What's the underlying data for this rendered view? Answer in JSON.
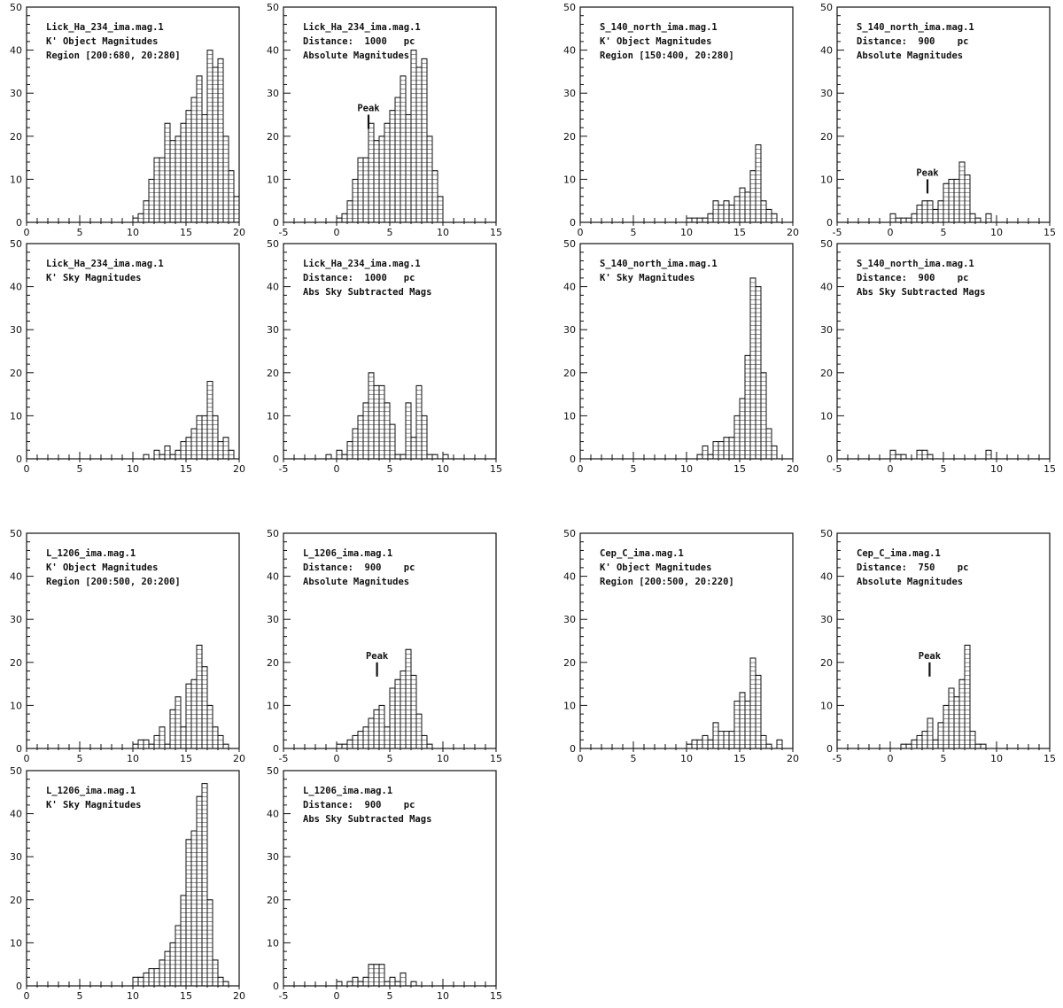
{
  "chart_data": [
    {
      "type": "histogram",
      "texts": [
        "Lick_Ha_234_ima.mag.1",
        "K' Object Magnitudes",
        "Region [200:680, 20:280]"
      ],
      "bins": [
        10,
        10.5,
        11,
        11.5,
        12,
        12.5,
        13,
        13.5,
        14,
        14.5,
        15,
        15.5,
        16,
        16.5,
        17,
        17.5,
        18,
        18.5,
        19,
        19.5,
        20
      ],
      "values": [
        1,
        2,
        5,
        10,
        15,
        15,
        23,
        19,
        20,
        23,
        26,
        29,
        34,
        25,
        40,
        36,
        38,
        20,
        12,
        6
      ],
      "xlim": [
        0,
        20
      ],
      "xticks": [
        0,
        5,
        10,
        15,
        20
      ],
      "ylim": [
        0,
        50
      ],
      "yticks": [
        0,
        10,
        20,
        30,
        40,
        50
      ]
    },
    {
      "type": "histogram",
      "texts": [
        "Lick_Ha_234_ima.mag.1",
        "Distance:  1000   pc",
        "Absolute Magnitudes"
      ],
      "bins": [
        0,
        0.5,
        1,
        1.5,
        2,
        2.5,
        3,
        3.5,
        4,
        4.5,
        5,
        5.5,
        6,
        6.5,
        7,
        7.5,
        8,
        8.5,
        9,
        9.5,
        10
      ],
      "values": [
        1,
        2,
        5,
        10,
        15,
        15,
        23,
        19,
        20,
        23,
        26,
        29,
        34,
        25,
        40,
        36,
        38,
        20,
        12,
        6
      ],
      "annotation": {
        "text": "Peak",
        "x": 3,
        "y": 25
      },
      "xlim": [
        -5,
        15
      ],
      "xticks": [
        -5,
        0,
        5,
        10,
        15
      ],
      "ylim": [
        0,
        50
      ],
      "yticks": [
        0,
        10,
        20,
        30,
        40,
        50
      ]
    },
    {
      "type": "histogram",
      "texts": [
        "S_140_north_ima.mag.1",
        "K' Object Magnitudes",
        "Region [150:400, 20:280]"
      ],
      "bins": [
        10,
        10.5,
        11,
        11.5,
        12,
        12.5,
        13,
        13.5,
        14,
        14.5,
        15,
        15.5,
        16,
        16.5,
        17,
        17.5,
        18,
        18.5
      ],
      "values": [
        1,
        1,
        1,
        1,
        2,
        5,
        4,
        5,
        4,
        6,
        8,
        7,
        12,
        18,
        5,
        3,
        2
      ],
      "xlim": [
        0,
        20
      ],
      "xticks": [
        0,
        5,
        10,
        15,
        20
      ],
      "ylim": [
        0,
        50
      ],
      "yticks": [
        0,
        10,
        20,
        30,
        40,
        50
      ]
    },
    {
      "type": "histogram",
      "texts": [
        "S_140_north_ima.mag.1",
        "Distance:  900    pc",
        "Absolute Magnitudes"
      ],
      "bins": [
        0,
        0.5,
        1,
        1.5,
        2,
        2.5,
        3,
        3.5,
        4,
        4.5,
        5,
        5.5,
        6,
        6.5,
        7,
        7.5,
        8,
        8.5,
        9,
        9.5
      ],
      "values": [
        2,
        1,
        1,
        1,
        2,
        4,
        5,
        5,
        3,
        5,
        9,
        10,
        10,
        14,
        11,
        2,
        1,
        0,
        2
      ],
      "annotation": {
        "text": "Peak",
        "x": 3.5,
        "y": 10
      },
      "xlim": [
        -5,
        15
      ],
      "xticks": [
        -5,
        0,
        5,
        10,
        15
      ],
      "ylim": [
        0,
        50
      ],
      "yticks": [
        0,
        10,
        20,
        30,
        40,
        50
      ]
    },
    {
      "type": "histogram",
      "texts": [
        "Lick_Ha_234_ima.mag.1",
        "K' Sky Magnitudes"
      ],
      "bins": [
        11,
        11.5,
        12,
        12.5,
        13,
        13.5,
        14,
        14.5,
        15,
        15.5,
        16,
        16.5,
        17,
        17.5,
        18,
        18.5,
        19,
        19.5
      ],
      "values": [
        1,
        0,
        2,
        1,
        3,
        1,
        2,
        4,
        5,
        7,
        10,
        10,
        18,
        10,
        4,
        5,
        2
      ],
      "xlim": [
        0,
        20
      ],
      "xticks": [
        0,
        5,
        10,
        15,
        20
      ],
      "ylim": [
        0,
        50
      ],
      "yticks": [
        0,
        10,
        20,
        30,
        40,
        50
      ]
    },
    {
      "type": "histogram",
      "texts": [
        "Lick_Ha_234_ima.mag.1",
        "Distance:  1000   pc",
        "Abs Sky Subtracted Mags"
      ],
      "bins": [
        -1,
        -0.5,
        0,
        0.5,
        1,
        1.5,
        2,
        2.5,
        3,
        3.5,
        4,
        4.5,
        5,
        5.5,
        6,
        6.5,
        7,
        7.5,
        8,
        8.5,
        9,
        9.5,
        10,
        10.5
      ],
      "values": [
        1,
        0,
        2,
        1,
        4,
        7,
        10,
        13,
        20,
        17,
        17,
        13,
        8,
        1,
        1,
        13,
        5,
        17,
        10,
        1,
        1,
        0,
        1
      ],
      "xlim": [
        -5,
        15
      ],
      "xticks": [
        -5,
        0,
        5,
        10,
        15
      ],
      "ylim": [
        0,
        50
      ],
      "yticks": [
        0,
        10,
        20,
        30,
        40,
        50
      ]
    },
    {
      "type": "histogram",
      "texts": [
        "S_140_north_ima.mag.1",
        "K' Sky Magnitudes"
      ],
      "bins": [
        11,
        11.5,
        12,
        12.5,
        13,
        13.5,
        14,
        14.5,
        15,
        15.5,
        16,
        16.5,
        17,
        17.5,
        18,
        18.5
      ],
      "values": [
        1,
        3,
        1,
        4,
        4,
        5,
        5,
        10,
        14,
        24,
        42,
        40,
        20,
        7,
        3
      ],
      "xlim": [
        0,
        20
      ],
      "xticks": [
        0,
        5,
        10,
        15,
        20
      ],
      "ylim": [
        0,
        50
      ],
      "yticks": [
        0,
        10,
        20,
        30,
        40,
        50
      ]
    },
    {
      "type": "histogram",
      "texts": [
        "S_140_north_ima.mag.1",
        "Distance:  900    pc",
        "Abs Sky Subtracted Mags"
      ],
      "bins": [
        0,
        0.5,
        1,
        1.5,
        2,
        2.5,
        3,
        3.5,
        4,
        4.5,
        5,
        5.5,
        6,
        6.5,
        7,
        7.5,
        8,
        8.5,
        9,
        9.5
      ],
      "values": [
        2,
        1,
        1,
        0,
        0,
        2,
        2,
        1,
        0,
        0,
        0,
        0,
        0,
        0,
        0,
        0,
        0,
        0,
        2
      ],
      "xlim": [
        -5,
        15
      ],
      "xticks": [
        -5,
        0,
        5,
        10,
        15
      ],
      "ylim": [
        0,
        50
      ],
      "yticks": [
        0,
        10,
        20,
        30,
        40,
        50
      ]
    },
    {
      "type": "histogram",
      "texts": [
        "L_1206_ima.mag.1",
        "K' Object Magnitudes",
        "Region [200:500, 20:200]"
      ],
      "bins": [
        10,
        10.5,
        11,
        11.5,
        12,
        12.5,
        13,
        13.5,
        14,
        14.5,
        15,
        15.5,
        16,
        16.5,
        17,
        17.5,
        18,
        18.5,
        19
      ],
      "values": [
        1,
        2,
        2,
        1,
        3,
        5,
        1,
        9,
        12,
        5,
        15,
        16,
        24,
        19,
        10,
        5,
        3,
        1
      ],
      "xlim": [
        0,
        20
      ],
      "xticks": [
        0,
        5,
        10,
        15,
        20
      ],
      "ylim": [
        0,
        50
      ],
      "yticks": [
        0,
        10,
        20,
        30,
        40,
        50
      ]
    },
    {
      "type": "histogram",
      "texts": [
        "L_1206_ima.mag.1",
        "Distance:  900    pc",
        "Absolute Magnitudes"
      ],
      "bins": [
        0,
        0.5,
        1,
        1.5,
        2,
        2.5,
        3,
        3.5,
        4,
        4.5,
        5,
        5.5,
        6,
        6.5,
        7,
        7.5,
        8,
        8.5,
        9
      ],
      "values": [
        1,
        1,
        2,
        3,
        4,
        5,
        7,
        9,
        10,
        5,
        14,
        16,
        18,
        23,
        17,
        8,
        3,
        1
      ],
      "annotation": {
        "text": "Peak",
        "x": 3.8,
        "y": 20
      },
      "xlim": [
        -5,
        15
      ],
      "xticks": [
        -5,
        0,
        5,
        10,
        15
      ],
      "ylim": [
        0,
        50
      ],
      "yticks": [
        0,
        10,
        20,
        30,
        40,
        50
      ]
    },
    {
      "type": "histogram",
      "texts": [
        "Cep_C_ima.mag.1",
        "K' Object Magnitudes",
        "Region [200:500, 20:220]"
      ],
      "bins": [
        10,
        10.5,
        11,
        11.5,
        12,
        12.5,
        13,
        13.5,
        14,
        14.5,
        15,
        15.5,
        16,
        16.5,
        17,
        17.5,
        18,
        18.5,
        19
      ],
      "values": [
        1,
        2,
        2,
        3,
        2,
        6,
        4,
        4,
        4,
        11,
        13,
        11,
        21,
        17,
        3,
        1,
        0,
        2
      ],
      "xlim": [
        0,
        20
      ],
      "xticks": [
        0,
        5,
        10,
        15,
        20
      ],
      "ylim": [
        0,
        50
      ],
      "yticks": [
        0,
        10,
        20,
        30,
        40,
        50
      ]
    },
    {
      "type": "histogram",
      "texts": [
        "Cep_C_ima.mag.1",
        "Distance:  750    pc",
        "Absolute Magnitudes"
      ],
      "bins": [
        1,
        1.5,
        2,
        2.5,
        3,
        3.5,
        4,
        4.5,
        5,
        5.5,
        6,
        6.5,
        7,
        7.5,
        8,
        8.5,
        9
      ],
      "values": [
        1,
        1,
        2,
        3,
        4,
        7,
        2,
        6,
        10,
        14,
        12,
        16,
        24,
        4,
        1,
        1
      ],
      "annotation": {
        "text": "Peak",
        "x": 3.7,
        "y": 20
      },
      "xlim": [
        -5,
        15
      ],
      "xticks": [
        -5,
        0,
        5,
        10,
        15
      ],
      "ylim": [
        0,
        50
      ],
      "yticks": [
        0,
        10,
        20,
        30,
        40,
        50
      ]
    },
    {
      "type": "histogram",
      "texts": [
        "L_1206_ima.mag.1",
        "K' Sky Magnitudes"
      ],
      "bins": [
        10,
        10.5,
        11,
        11.5,
        12,
        12.5,
        13,
        13.5,
        14,
        14.5,
        15,
        15.5,
        16,
        16.5,
        17,
        17.5,
        18,
        18.5,
        19
      ],
      "values": [
        2,
        2,
        3,
        4,
        4,
        6,
        8,
        10,
        14,
        21,
        34,
        36,
        44,
        47,
        20,
        6,
        2,
        1
      ],
      "xlim": [
        0,
        20
      ],
      "xticks": [
        0,
        5,
        10,
        15,
        20
      ],
      "ylim": [
        0,
        50
      ],
      "yticks": [
        0,
        10,
        20,
        30,
        40,
        50
      ]
    },
    {
      "type": "histogram",
      "texts": [
        "L_1206_ima.mag.1",
        "Distance:  900    pc",
        "Abs Sky Subtracted Mags"
      ],
      "bins": [
        0,
        0.5,
        1,
        1.5,
        2,
        2.5,
        3,
        3.5,
        4,
        4.5,
        5,
        5.5,
        6,
        6.5,
        7,
        7.5
      ],
      "values": [
        1,
        0,
        1,
        2,
        1,
        2,
        5,
        5,
        5,
        1,
        2,
        1,
        3,
        0,
        1
      ],
      "xlim": [
        -5,
        15
      ],
      "xticks": [
        -5,
        0,
        5,
        10,
        15
      ],
      "ylim": [
        0,
        50
      ],
      "yticks": [
        0,
        10,
        20,
        30,
        40,
        50
      ]
    }
  ]
}
